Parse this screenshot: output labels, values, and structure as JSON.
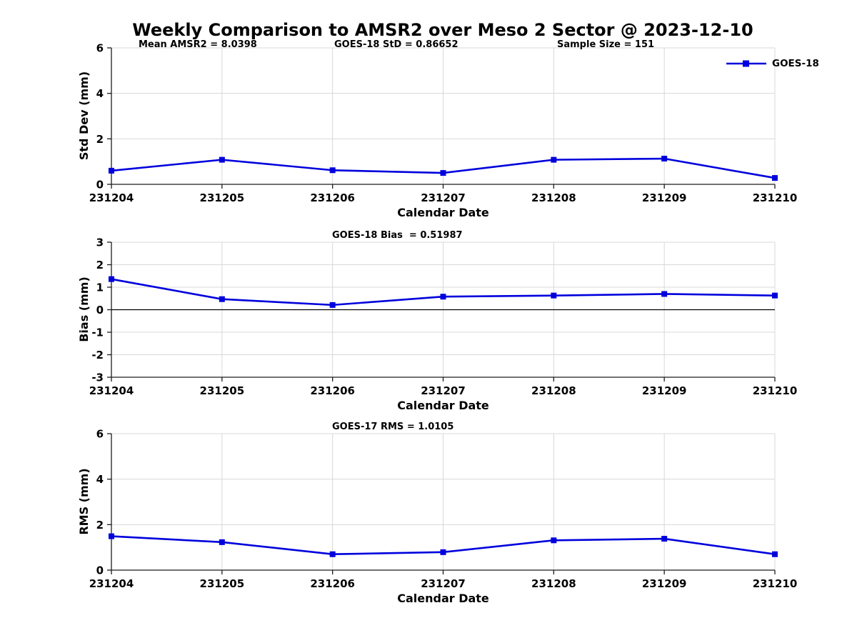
{
  "figure_title": "Weekly Comparison to AMSR2 over Meso 2 Sector @ 2023-12-10",
  "colors": {
    "series": "#0000dd",
    "grid": "#d8d8d8",
    "axis": "#1c1c1c",
    "zero_line": "#000000"
  },
  "chart_data": [
    {
      "type": "line",
      "categories": [
        "231204",
        "231205",
        "231206",
        "231207",
        "231208",
        "231209",
        "231210"
      ],
      "series": [
        {
          "name": "GOES-18",
          "color": "#0000dd",
          "marker": "square",
          "values": [
            0.6,
            1.08,
            0.62,
            0.5,
            1.08,
            1.13,
            0.28
          ]
        }
      ],
      "annotations": [
        "Mean AMSR2 = 8.0398",
        "GOES-18 StD = 0.86652",
        "Sample Size = 151"
      ],
      "xlabel": "Calendar Date",
      "ylabel": "Std Dev (mm)",
      "ylim": [
        0,
        6
      ],
      "yticks": [
        0,
        2,
        4,
        6
      ],
      "grid": true,
      "zero_line": false,
      "legend": {
        "label": "GOES-18",
        "position": "top-right"
      }
    },
    {
      "type": "line",
      "title": "GOES-18 Bias  = 0.51987",
      "categories": [
        "231204",
        "231205",
        "231206",
        "231207",
        "231208",
        "231209",
        "231210"
      ],
      "series": [
        {
          "name": "GOES-18",
          "color": "#0000dd",
          "marker": "square",
          "values": [
            1.36,
            0.47,
            0.21,
            0.58,
            0.63,
            0.7,
            0.63
          ]
        }
      ],
      "xlabel": "Calendar Date",
      "ylabel": "Bias (mm)",
      "ylim": [
        -3,
        3
      ],
      "yticks": [
        -3,
        -2,
        -1,
        0,
        1,
        2,
        3
      ],
      "grid": true,
      "zero_line": true
    },
    {
      "type": "line",
      "title": "GOES-17 RMS = 1.0105",
      "categories": [
        "231204",
        "231205",
        "231206",
        "231207",
        "231208",
        "231209",
        "231210"
      ],
      "series": [
        {
          "name": "GOES-18",
          "color": "#0000dd",
          "marker": "square",
          "values": [
            1.49,
            1.23,
            0.7,
            0.79,
            1.31,
            1.38,
            0.7
          ]
        }
      ],
      "xlabel": "Calendar Date",
      "ylabel": "RMS (mm)",
      "ylim": [
        0,
        6
      ],
      "yticks": [
        0,
        2,
        4,
        6
      ],
      "grid": true,
      "zero_line": false
    }
  ]
}
